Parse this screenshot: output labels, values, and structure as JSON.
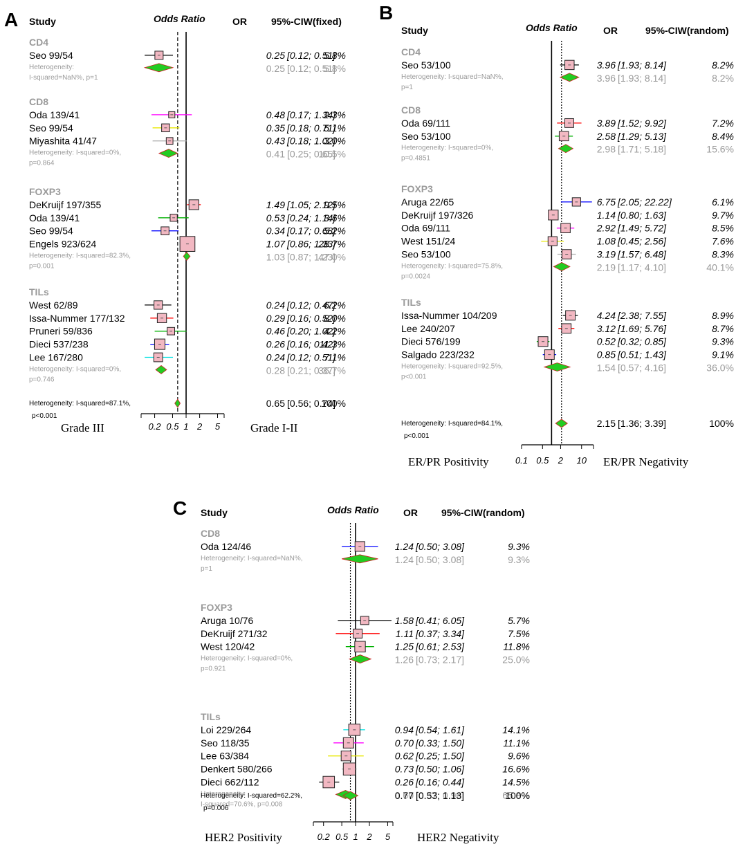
{
  "chart_data": [
    {
      "type": "forest",
      "panel_label": "A",
      "headers": {
        "study": "Study",
        "effect": "Odds Ratio",
        "or": "OR",
        "ci": "95%-CIW(fixed)"
      },
      "scale": "log",
      "ticks": [
        {
          "value": 0.2,
          "label": "0.2"
        },
        {
          "value": 0.5,
          "label": "0.5"
        },
        {
          "value": 1,
          "label": "1"
        },
        {
          "value": 2,
          "label": "2"
        },
        {
          "value": 5,
          "label": "5"
        }
      ],
      "xlim": [
        0.1,
        7
      ],
      "pooled_line": 0.65,
      "left_label": "Grade III",
      "right_label": "Grade I-II",
      "groups": [
        {
          "name": "CD4",
          "studies": [
            {
              "label": "Seo 99/54",
              "or": 0.25,
              "lo": 0.12,
              "hi": 0.51,
              "or_text": "0.25",
              "ci_text": "[0.12; 0.51]",
              "weight": "5.8%",
              "color": "#000000"
            }
          ],
          "summary": {
            "or": 0.25,
            "lo": 0.12,
            "hi": 0.51,
            "or_text": "0.25",
            "ci_text": "[0.12; 0.51]",
            "weight": "5.8%"
          },
          "het": [
            "Heterogeneity:",
            "I-squared=NaN%, p=1"
          ]
        },
        {
          "name": "CD8",
          "studies": [
            {
              "label": "Oda 139/41",
              "or": 0.48,
              "lo": 0.17,
              "hi": 1.34,
              "or_text": "0.48",
              "ci_text": "[0.17; 1.34]",
              "weight": "2.3%",
              "color": "#ff00ff"
            },
            {
              "label": "Seo 99/54",
              "or": 0.35,
              "lo": 0.18,
              "hi": 0.71,
              "or_text": "0.35",
              "ci_text": "[0.18; 0.71]",
              "weight": "5.1%",
              "color": "#e8e800"
            },
            {
              "label": "Miyashita 41/47",
              "or": 0.43,
              "lo": 0.18,
              "hi": 1.02,
              "or_text": "0.43",
              "ci_text": "[0.18; 1.02]",
              "weight": "3.0%",
              "color": "#b0b0b0"
            }
          ],
          "summary": {
            "or": 0.41,
            "lo": 0.25,
            "hi": 0.65,
            "or_text": "0.41",
            "ci_text": "[0.25; 0.65]",
            "weight": "10.5%"
          },
          "het": [
            "Heterogeneity: I-squared=0%,",
            "p=0.864"
          ]
        },
        {
          "name": "FOXP3",
          "studies": [
            {
              "label": "DeKruijf 197/355",
              "or": 1.49,
              "lo": 1.05,
              "hi": 2.12,
              "or_text": "1.49",
              "ci_text": "[1.05; 2.12]",
              "weight": "9.5%",
              "color": "#ff0000"
            },
            {
              "label": "Oda 139/41",
              "or": 0.53,
              "lo": 0.24,
              "hi": 1.14,
              "or_text": "0.53",
              "ci_text": "[0.24; 1.14]",
              "weight": "3.6%",
              "color": "#00b000"
            },
            {
              "label": "Seo 99/54",
              "or": 0.34,
              "lo": 0.17,
              "hi": 0.68,
              "or_text": "0.34",
              "ci_text": "[0.17; 0.68]",
              "weight": "5.2%",
              "color": "#0000ff"
            },
            {
              "label": "Engels 923/624",
              "or": 1.07,
              "lo": 0.86,
              "hi": 1.33,
              "or_text": "1.07",
              "ci_text": "[0.86; 1.33]",
              "weight": "28.7%",
              "color": "#b0b0b0"
            }
          ],
          "summary": {
            "or": 1.03,
            "lo": 0.87,
            "hi": 1.23,
            "or_text": "1.03",
            "ci_text": "[0.87; 1.23]",
            "weight": "47.0%"
          },
          "het": [
            "Heterogeneity: I-squared=82.3%,",
            "p=0.001"
          ]
        },
        {
          "name": "TILs",
          "studies": [
            {
              "label": "West 62/89",
              "or": 0.24,
              "lo": 0.12,
              "hi": 0.47,
              "or_text": "0.24",
              "ci_text": "[0.12; 0.47]",
              "weight": "6.2%",
              "color": "#000000"
            },
            {
              "label": "Issa-Nummer 177/132",
              "or": 0.29,
              "lo": 0.16,
              "hi": 0.52,
              "or_text": "0.29",
              "ci_text": "[0.16; 0.52]",
              "weight": "8.0%",
              "color": "#ff0000"
            },
            {
              "label": "Pruneri 59/836",
              "or": 0.46,
              "lo": 0.2,
              "hi": 1.02,
              "or_text": "0.46",
              "ci_text": "[0.20; 1.02]",
              "weight": "4.2%",
              "color": "#00b000"
            },
            {
              "label": "Dieci 537/238",
              "or": 0.26,
              "lo": 0.16,
              "hi": 0.42,
              "or_text": "0.26",
              "ci_text": "[0.16; 0.42]",
              "weight": "11.3%",
              "color": "#0000ff"
            },
            {
              "label": "Lee 167/280",
              "or": 0.24,
              "lo": 0.12,
              "hi": 0.51,
              "or_text": "0.24",
              "ci_text": "[0.12; 0.51]",
              "weight": "7.1%",
              "color": "#00e0e0"
            }
          ],
          "summary": {
            "or": 0.28,
            "lo": 0.21,
            "hi": 0.37,
            "or_text": "0.28",
            "ci_text": "[0.21; 0.37]",
            "weight": "36.7%"
          },
          "het": [
            "Heterogeneity: I-squared=0%,",
            "p=0.746"
          ]
        }
      ],
      "overall": {
        "or": 0.65,
        "lo": 0.56,
        "hi": 0.74,
        "or_text": "0.65",
        "ci_text": "[0.56; 0.74]",
        "weight": "100%",
        "het": [
          "Heterogeneity: I-squared=87.1%,",
          "p<0.001"
        ]
      }
    },
    {
      "type": "forest",
      "panel_label": "B",
      "headers": {
        "study": "Study",
        "effect": "Odds Ratio",
        "or": "OR",
        "ci": "95%-CIW(random)"
      },
      "scale": "log",
      "ticks": [
        {
          "value": 0.1,
          "label": "0.1"
        },
        {
          "value": 0.5,
          "label": "0.5"
        },
        {
          "value": 2,
          "label": "2"
        },
        {
          "value": 10,
          "label": "10"
        }
      ],
      "xlim": [
        0.1,
        25
      ],
      "pooled_line": 2.15,
      "left_label": "ER/PR Positivity",
      "right_label": "ER/PR Negativity",
      "groups": [
        {
          "name": "CD4",
          "studies": [
            {
              "label": "Seo 53/100",
              "or": 3.96,
              "lo": 1.93,
              "hi": 8.14,
              "or_text": "3.96",
              "ci_text": "[1.93; 8.14]",
              "weight": "8.2%",
              "color": "#000000"
            }
          ],
          "summary": {
            "or": 3.96,
            "lo": 1.93,
            "hi": 8.14,
            "or_text": "3.96",
            "ci_text": "[1.93; 8.14]",
            "weight": "8.2%"
          },
          "het": [
            "Heterogeneity: I-squared=NaN%,",
            "p=1"
          ]
        },
        {
          "name": "CD8",
          "studies": [
            {
              "label": "Oda 69/111",
              "or": 3.89,
              "lo": 1.52,
              "hi": 9.92,
              "or_text": "3.89",
              "ci_text": "[1.52; 9.92]",
              "weight": "7.2%",
              "color": "#ff0000"
            },
            {
              "label": "Seo 53/100",
              "or": 2.58,
              "lo": 1.29,
              "hi": 5.13,
              "or_text": "2.58",
              "ci_text": "[1.29; 5.13]",
              "weight": "8.4%",
              "color": "#00b000"
            }
          ],
          "summary": {
            "or": 2.98,
            "lo": 1.71,
            "hi": 5.18,
            "or_text": "2.98",
            "ci_text": "[1.71; 5.18]",
            "weight": "15.6%"
          },
          "het": [
            "Heterogeneity: I-squared=0%,",
            "p=0.4851"
          ]
        },
        {
          "name": "FOXP3",
          "studies": [
            {
              "label": "Aruga 22/65",
              "or": 6.75,
              "lo": 2.05,
              "hi": 22.22,
              "or_text": "6.75",
              "ci_text": "[2.05; 22.22]",
              "weight": "6.1%",
              "color": "#0000ff"
            },
            {
              "label": "DeKruijf 197/326",
              "or": 1.14,
              "lo": 0.8,
              "hi": 1.63,
              "or_text": "1.14",
              "ci_text": "[0.80; 1.63]",
              "weight": "9.7%",
              "color": "#00e0e0"
            },
            {
              "label": "Oda 69/111",
              "or": 2.92,
              "lo": 1.49,
              "hi": 5.72,
              "or_text": "2.92",
              "ci_text": "[1.49; 5.72]",
              "weight": "8.5%",
              "color": "#ff00ff"
            },
            {
              "label": "West 151/24",
              "or": 1.08,
              "lo": 0.45,
              "hi": 2.56,
              "or_text": "1.08",
              "ci_text": "[0.45; 2.56]",
              "weight": "7.6%",
              "color": "#e8e800"
            },
            {
              "label": "Seo 53/100",
              "or": 3.19,
              "lo": 1.57,
              "hi": 6.48,
              "or_text": "3.19",
              "ci_text": "[1.57; 6.48]",
              "weight": "8.3%",
              "color": "#b0b0b0"
            }
          ],
          "summary": {
            "or": 2.19,
            "lo": 1.17,
            "hi": 4.1,
            "or_text": "2.19",
            "ci_text": "[1.17; 4.10]",
            "weight": "40.1%"
          },
          "het": [
            "Heterogeneity: I-squared=75.8%,",
            "p=0.0024"
          ]
        },
        {
          "name": "TILs",
          "studies": [
            {
              "label": "Issa-Nummer 104/209",
              "or": 4.24,
              "lo": 2.38,
              "hi": 7.55,
              "or_text": "4.24",
              "ci_text": "[2.38; 7.55]",
              "weight": "8.9%",
              "color": "#000000"
            },
            {
              "label": "Lee 240/207",
              "or": 3.12,
              "lo": 1.69,
              "hi": 5.76,
              "or_text": "3.12",
              "ci_text": "[1.69; 5.76]",
              "weight": "8.7%",
              "color": "#ff0000"
            },
            {
              "label": "Dieci 576/199",
              "or": 0.52,
              "lo": 0.32,
              "hi": 0.85,
              "or_text": "0.52",
              "ci_text": "[0.32; 0.85]",
              "weight": "9.3%",
              "color": "#00b000"
            },
            {
              "label": "Salgado 223/232",
              "or": 0.85,
              "lo": 0.51,
              "hi": 1.43,
              "or_text": "0.85",
              "ci_text": "[0.51; 1.43]",
              "weight": "9.1%",
              "color": "#0000ff"
            }
          ],
          "summary": {
            "or": 1.54,
            "lo": 0.57,
            "hi": 4.16,
            "or_text": "1.54",
            "ci_text": "[0.57; 4.16]",
            "weight": "36.0%"
          },
          "het": [
            "Heterogeneity: I-squared=92.5%,",
            "p<0.001"
          ]
        }
      ],
      "overall": {
        "or": 2.15,
        "lo": 1.36,
        "hi": 3.39,
        "or_text": "2.15",
        "ci_text": "[1.36; 3.39]",
        "weight": "100%",
        "het": [
          "Heterogeneity: I-squared=84.1%,",
          "p<0.001"
        ]
      }
    },
    {
      "type": "forest",
      "panel_label": "C",
      "headers": {
        "study": "Study",
        "effect": "Odds Ratio",
        "or": "OR",
        "ci": "95%-CIW(random)"
      },
      "scale": "log",
      "ticks": [
        {
          "value": 0.2,
          "label": "0.2"
        },
        {
          "value": 0.5,
          "label": "0.5"
        },
        {
          "value": 1,
          "label": "1"
        },
        {
          "value": 2,
          "label": "2"
        },
        {
          "value": 5,
          "label": "5"
        }
      ],
      "xlim": [
        0.12,
        6.5
      ],
      "pooled_line": 0.77,
      "left_label": "HER2 Positivity",
      "right_label": "HER2 Negativity",
      "groups": [
        {
          "name": "CD8",
          "studies": [
            {
              "label": "Oda 124/46",
              "or": 1.24,
              "lo": 0.5,
              "hi": 3.08,
              "or_text": "1.24",
              "ci_text": "[0.50; 3.08]",
              "weight": "9.3%",
              "color": "#0000ff"
            }
          ],
          "summary": {
            "or": 1.24,
            "lo": 0.5,
            "hi": 3.08,
            "or_text": "1.24",
            "ci_text": "[0.50; 3.08]",
            "weight": "9.3%"
          },
          "het": [
            "Heterogeneity: I-squared=NaN%,",
            "p=1"
          ]
        },
        {
          "name": "FOXP3",
          "studies": [
            {
              "label": "Aruga 10/76",
              "or": 1.58,
              "lo": 0.41,
              "hi": 6.05,
              "or_text": "1.58",
              "ci_text": "[0.41; 6.05]",
              "weight": "5.7%",
              "color": "#000000"
            },
            {
              "label": "DeKruijf 271/32",
              "or": 1.11,
              "lo": 0.37,
              "hi": 3.34,
              "or_text": "1.11",
              "ci_text": "[0.37; 3.34]",
              "weight": "7.5%",
              "color": "#ff0000"
            },
            {
              "label": "West 120/42",
              "or": 1.25,
              "lo": 0.61,
              "hi": 2.53,
              "or_text": "1.25",
              "ci_text": "[0.61; 2.53]",
              "weight": "11.8%",
              "color": "#00b000"
            }
          ],
          "summary": {
            "or": 1.26,
            "lo": 0.73,
            "hi": 2.17,
            "or_text": "1.26",
            "ci_text": "[0.73; 2.17]",
            "weight": "25.0%"
          },
          "het": [
            "Heterogeneity: I-squared=0%,",
            "p=0.921"
          ]
        },
        {
          "name": "TILs",
          "studies": [
            {
              "label": "Loi 229/264",
              "or": 0.94,
              "lo": 0.54,
              "hi": 1.61,
              "or_text": "0.94",
              "ci_text": "[0.54; 1.61]",
              "weight": "14.1%",
              "color": "#00e0e0"
            },
            {
              "label": "Seo 118/35",
              "or": 0.7,
              "lo": 0.33,
              "hi": 1.5,
              "or_text": "0.70",
              "ci_text": "[0.33; 1.50]",
              "weight": "11.1%",
              "color": "#ff00ff"
            },
            {
              "label": "Lee 63/384",
              "or": 0.62,
              "lo": 0.25,
              "hi": 1.5,
              "or_text": "0.62",
              "ci_text": "[0.25; 1.50]",
              "weight": "9.6%",
              "color": "#e8e800"
            },
            {
              "label": "Denkert 580/266",
              "or": 0.73,
              "lo": 0.5,
              "hi": 1.06,
              "or_text": "0.73",
              "ci_text": "[0.50; 1.06]",
              "weight": "16.6%",
              "color": "#b0b0b0"
            },
            {
              "label": "Dieci 662/112",
              "or": 0.26,
              "lo": 0.16,
              "hi": 0.44,
              "or_text": "0.26",
              "ci_text": "[0.16; 0.44]",
              "weight": "14.5%",
              "color": "#000000"
            }
          ],
          "summary": {
            "or": 0.6,
            "lo": 0.37,
            "hi": 0.96,
            "or_text": "0.60",
            "ci_text": "[0.37; 0.96]",
            "weight": "65.8%"
          },
          "het": [
            "Heterogeneity:",
            "I-squared=70.6%,  p=0.008"
          ]
        }
      ],
      "overall": {
        "or": 0.77,
        "lo": 0.53,
        "hi": 1.13,
        "or_text": "0.77",
        "ci_text": "[0.53; 1.13]",
        "weight": "100%",
        "het": [
          "Heterogeneity: I-squared=62.2%,",
          "p=0.006"
        ]
      }
    }
  ]
}
